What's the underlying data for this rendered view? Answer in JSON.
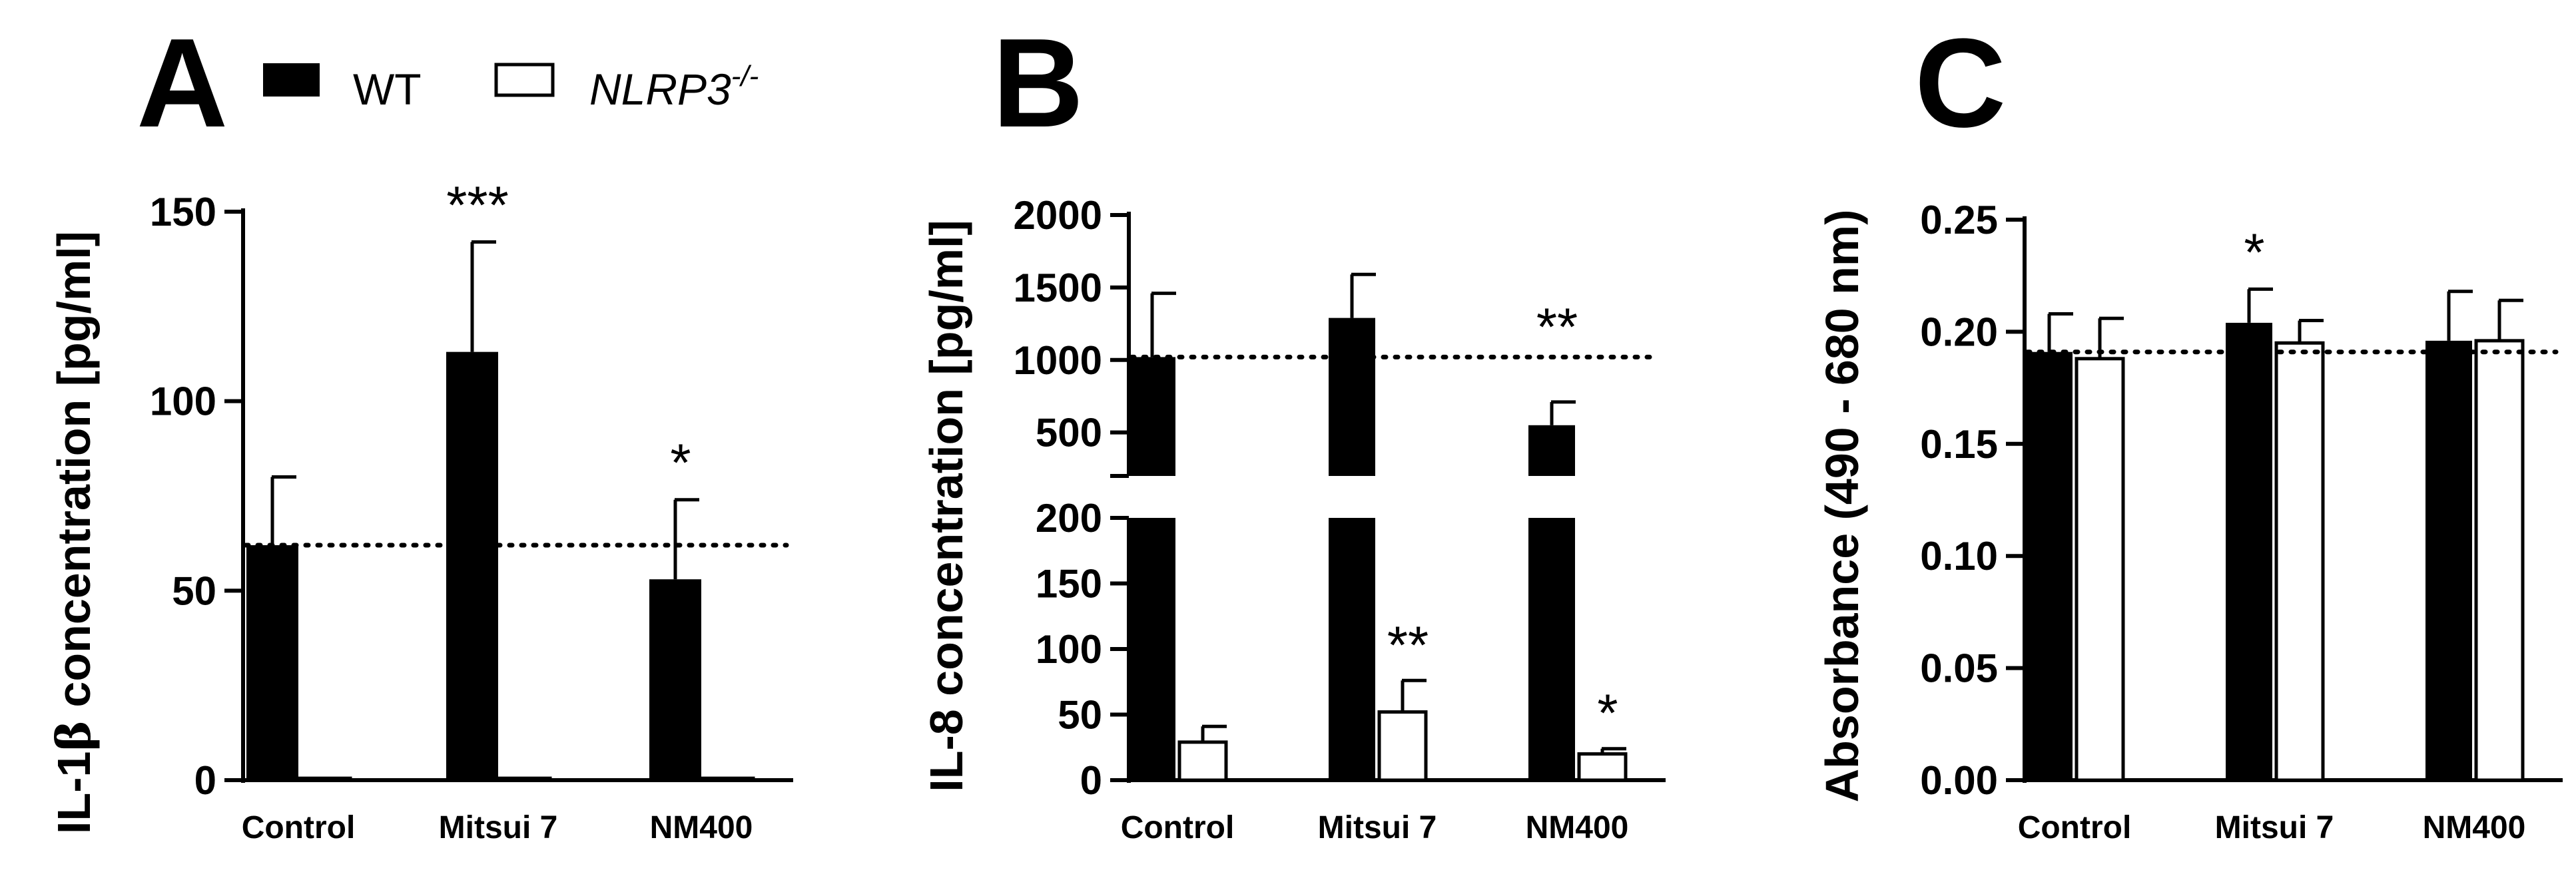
{
  "legend": {
    "wt_label": "WT",
    "ko_label": "NLRP3",
    "ko_superscript": "-/-"
  },
  "colors": {
    "wt": "#000000",
    "ko": "#ffffff",
    "stroke": "#000000"
  },
  "chart_data": [
    {
      "panel": "A",
      "type": "bar",
      "ylabel_main": "IL-1",
      "ylabel_greek": "β",
      "ylabel_rest": " concentration [pg/ml]",
      "categories": [
        "Control",
        "Mitsui 7",
        "NM400"
      ],
      "series": [
        {
          "name": "WT",
          "values": [
            62,
            113,
            53
          ],
          "errors": [
            18,
            29,
            21
          ]
        },
        {
          "name": "NLRP3-/-",
          "values": [
            0.5,
            0.5,
            0.5
          ],
          "errors": [
            0,
            0,
            0
          ]
        }
      ],
      "ylim": [
        0,
        150
      ],
      "yticks": [
        "0",
        "50",
        "100",
        "150"
      ],
      "reference_line": 62,
      "significance": [
        {
          "category": "Mitsui 7",
          "series": "WT",
          "label": "***"
        },
        {
          "category": "NM400",
          "series": "WT",
          "label": "*"
        }
      ]
    },
    {
      "panel": "B",
      "type": "bar",
      "ylabel": "IL-8 concentration [pg/ml]",
      "categories": [
        "Control",
        "Mitsui 7",
        "NM400"
      ],
      "series": [
        {
          "name": "WT",
          "values": [
            1020,
            1290,
            550
          ],
          "errors": [
            440,
            300,
            160
          ]
        },
        {
          "name": "NLRP3-/-",
          "values": [
            29,
            52,
            20
          ],
          "errors": [
            12,
            24,
            4
          ]
        }
      ],
      "axis_break": {
        "lower": [
          0,
          200
        ],
        "upper": [
          200,
          2000
        ]
      },
      "yticks_lower": [
        "0",
        "50",
        "100",
        "150",
        "200"
      ],
      "yticks_upper": [
        "500",
        "1000",
        "1500",
        "2000"
      ],
      "reference_line": 1020,
      "significance": [
        {
          "category": "NM400",
          "series": "WT",
          "label": "**"
        },
        {
          "category": "Mitsui 7",
          "series": "NLRP3-/-",
          "label": "**"
        },
        {
          "category": "NM400",
          "series": "NLRP3-/-",
          "label": "*"
        }
      ]
    },
    {
      "panel": "C",
      "type": "bar",
      "ylabel": "Absorbance (490 - 680 nm)",
      "categories": [
        "Control",
        "Mitsui 7",
        "NM400"
      ],
      "series": [
        {
          "name": "WT",
          "values": [
            0.191,
            0.204,
            0.196
          ],
          "errors": [
            0.017,
            0.015,
            0.022
          ]
        },
        {
          "name": "NLRP3-/-",
          "values": [
            0.188,
            0.195,
            0.196
          ],
          "errors": [
            0.018,
            0.01,
            0.018
          ]
        }
      ],
      "ylim": [
        0,
        0.25
      ],
      "yticks": [
        "0.00",
        "0.05",
        "0.10",
        "0.15",
        "0.20",
        "0.25"
      ],
      "reference_line": 0.191,
      "significance": [
        {
          "category": "Mitsui 7",
          "series": "WT",
          "label": "*"
        }
      ]
    }
  ]
}
